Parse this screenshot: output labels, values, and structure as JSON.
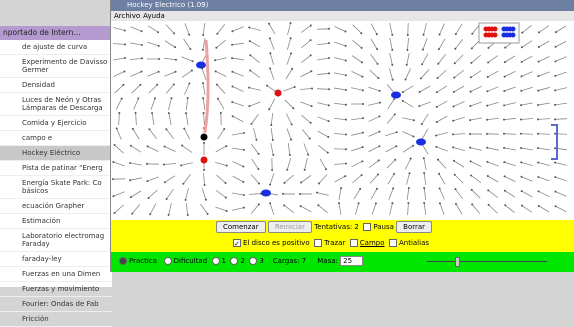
{
  "background_window": {
    "title": "nportado de Intern...",
    "items": [
      "de ajuste de curva",
      "Experimento de Davisso Germer",
      "Densidad",
      "Luces de Neón y Otras Lámparas de Descarga",
      "Comida y Ejercicio",
      "campo e",
      "Hockey Eléctrico",
      "Pista de patinar \"Energ",
      "Energía Skate Park: Co básicos",
      "ecuación Grapher",
      "Estimación",
      "Laboratorio electromag Faraday",
      "faraday-ley",
      "Fuerzas en una Dimen",
      "Fuerzas y movimiento",
      "Fourier: Ondas de Fab",
      "Fricción"
    ],
    "selected": 6
  },
  "app_window": {
    "title": "Hockey Electrico (1.09)",
    "menu": [
      "Archivo",
      "Ayuda"
    ],
    "controls": {
      "start": "Comenzar",
      "reset": "Reiniciar",
      "tries": "Tentativas: 2",
      "pause": "Pausa",
      "clear": "Borrar",
      "positive": "El disco es positivo",
      "trace": "Trazar",
      "field": "Campo",
      "antialias": "Antialias",
      "practice": "Practica",
      "difficulty": "Dificultad",
      "levels": [
        "1",
        "2",
        "3"
      ],
      "charges": "Cargas: 7",
      "mass_label": "Masa:",
      "mass": "25"
    }
  }
}
